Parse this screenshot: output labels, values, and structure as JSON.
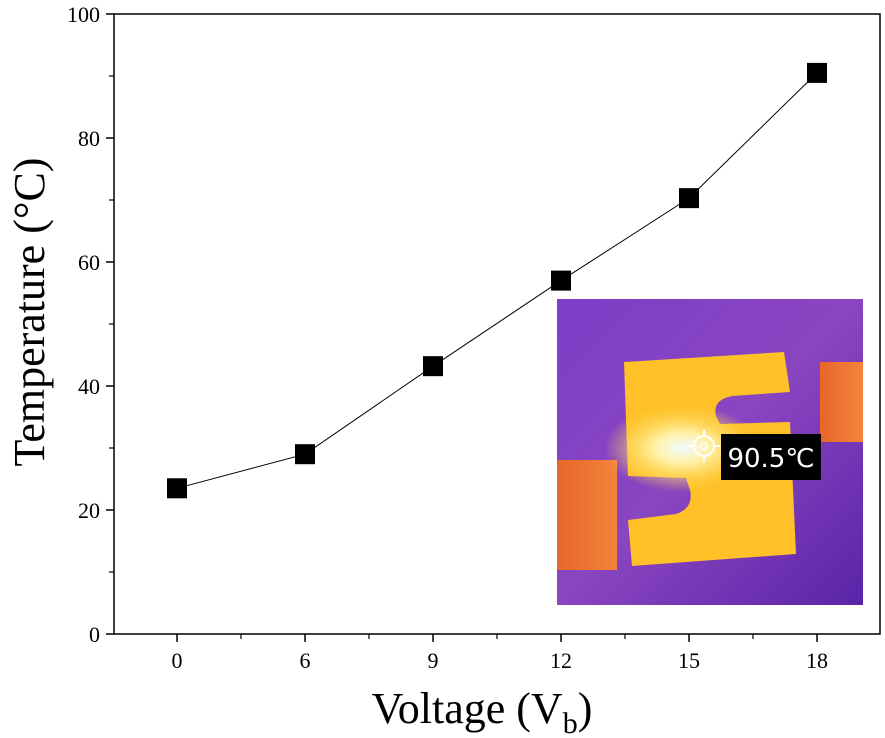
{
  "chart_data": {
    "type": "line",
    "title": "",
    "xlabel": "Voltage (V",
    "xlabel_subscript": "b",
    "xlabel_close": ")",
    "ylabel": "Temperature (°C)",
    "categories": [
      "0",
      "6",
      "9",
      "12",
      "15",
      "18"
    ],
    "yticks": [
      "0",
      "20",
      "40",
      "60",
      "80",
      "100"
    ],
    "ylim": [
      0,
      100
    ],
    "series": [
      {
        "values": [
          23.5,
          29.0,
          43.2,
          57.0,
          70.3,
          90.5
        ],
        "marker": "square",
        "color": "#000000"
      }
    ],
    "grid": false,
    "legend": "none"
  },
  "inset": {
    "label": "90.5℃",
    "icon": "crosshair-icon",
    "description_colors": {
      "background": "#6a2bb8",
      "hot": "#ffd84a",
      "hottest": "#fff6d0"
    }
  }
}
